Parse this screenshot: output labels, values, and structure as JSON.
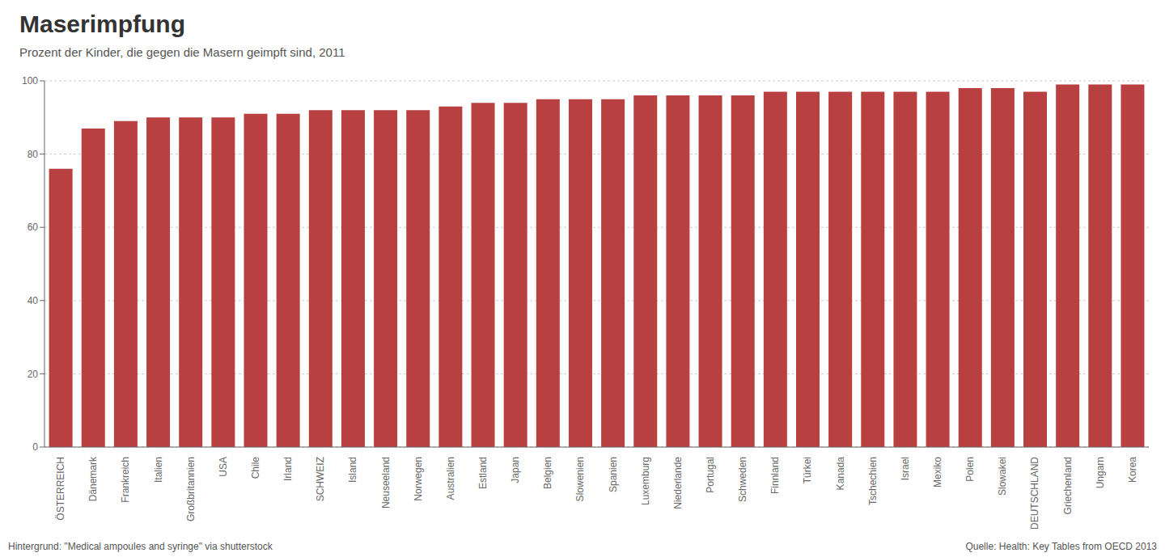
{
  "chart_data": {
    "type": "bar",
    "title": "Maserimpfung",
    "subtitle": "Prozent der Kinder, die gegen die Masern geimpft sind, 2011",
    "categories": [
      "ÖSTERREICH",
      "Dänemark",
      "Frankreich",
      "Italien",
      "Großbritannien",
      "USA",
      "Chile",
      "Irland",
      "SCHWEIZ",
      "Island",
      "Neuseeland",
      "Norwegen",
      "Australien",
      "Estland",
      "Japan",
      "Belgien",
      "Slowenien",
      "Spanien",
      "Luxemburg",
      "Niederlande",
      "Portugal",
      "Schweden",
      "Finnland",
      "Türkei",
      "Kanada",
      "Tschechien",
      "Israel",
      "Mexiko",
      "Polen",
      "Slowakei",
      "DEUTSCHLAND",
      "Griechenland",
      "Ungarn",
      "Korea"
    ],
    "values": [
      76,
      87,
      89,
      90,
      90,
      90,
      91,
      91,
      92,
      92,
      92,
      92,
      93,
      94,
      94,
      95,
      95,
      95,
      96,
      96,
      96,
      96,
      97,
      97,
      97,
      97,
      97,
      97,
      98,
      98,
      97,
      99,
      99,
      99
    ],
    "color": "#b94040",
    "ylim": [
      0,
      100
    ],
    "yticks": [
      0,
      20,
      40,
      60,
      80,
      100
    ],
    "grid": true,
    "annotations": [
      "Hintergrund: \"Medical ampoules and syringe\" via shutterstock",
      "Quelle: Health: Key Tables from OECD 2013"
    ]
  }
}
